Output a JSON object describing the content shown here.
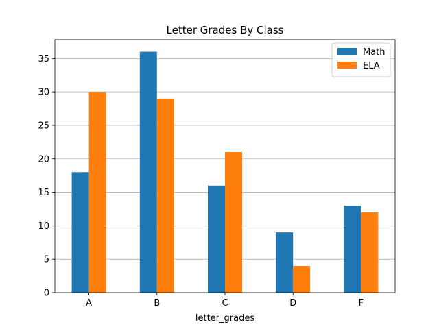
{
  "chart_data": {
    "type": "bar",
    "title": "Letter Grades By Class",
    "xlabel": "letter_grades",
    "ylabel": "",
    "categories": [
      "A",
      "B",
      "C",
      "D",
      "F"
    ],
    "series": [
      {
        "name": "Math",
        "values": [
          18,
          36,
          16,
          9,
          13
        ],
        "color": "#1f77b4"
      },
      {
        "name": "ELA",
        "values": [
          30,
          29,
          21,
          4,
          12
        ],
        "color": "#ff7f0e"
      }
    ],
    "ylim": [
      0,
      37.8
    ],
    "yticks": [
      0,
      5,
      10,
      15,
      20,
      25,
      30,
      35
    ],
    "grid": "y",
    "legend_position": "top-right"
  }
}
